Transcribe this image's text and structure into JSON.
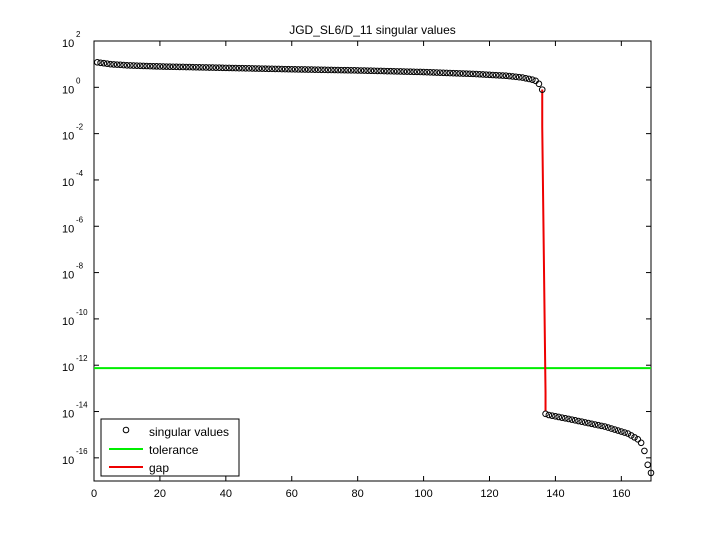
{
  "chart_data": {
    "type": "scatter",
    "title": "JGD_SL6/D_11 singular values",
    "xlabel": "",
    "ylabel": "",
    "xlim": [
      0,
      169
    ],
    "ylim": [
      1e-17,
      100
    ],
    "yscale": "log",
    "grid": false,
    "legend_position": "bottom-left",
    "x_ticks": [
      0,
      20,
      40,
      60,
      80,
      100,
      120,
      140,
      160
    ],
    "y_ticks": [
      {
        "value": 100,
        "base": "10",
        "exp": "2"
      },
      {
        "value": 1,
        "base": "10",
        "exp": "0"
      },
      {
        "value": 0.01,
        "base": "10",
        "exp": "-2"
      },
      {
        "value": 0.0001,
        "base": "10",
        "exp": "-4"
      },
      {
        "value": 1e-06,
        "base": "10",
        "exp": "-6"
      },
      {
        "value": 1e-08,
        "base": "10",
        "exp": "-8"
      },
      {
        "value": 1e-10,
        "base": "10",
        "exp": "-10"
      },
      {
        "value": 1e-12,
        "base": "10",
        "exp": "-12"
      },
      {
        "value": 1e-14,
        "base": "10",
        "exp": "-14"
      },
      {
        "value": 1e-16,
        "base": "10",
        "exp": "-16"
      }
    ],
    "series": [
      {
        "name": "singular values",
        "marker": "circle",
        "color": "#000000",
        "piecewise_log10": [
          [
            1,
            1.08
          ],
          [
            5,
            1.0
          ],
          [
            10,
            0.95
          ],
          [
            20,
            0.9
          ],
          [
            40,
            0.84
          ],
          [
            60,
            0.78
          ],
          [
            80,
            0.73
          ],
          [
            100,
            0.66
          ],
          [
            115,
            0.58
          ],
          [
            125,
            0.5
          ],
          [
            130,
            0.42
          ],
          [
            133,
            0.33
          ],
          [
            134,
            0.28
          ],
          [
            135,
            0.15
          ],
          [
            136,
            -0.1
          ],
          [
            137,
            -14.1
          ],
          [
            138,
            -14.15
          ],
          [
            145,
            -14.35
          ],
          [
            155,
            -14.65
          ],
          [
            162,
            -14.95
          ],
          [
            165,
            -15.2
          ],
          [
            166,
            -15.35
          ],
          [
            167,
            -15.7
          ],
          [
            168,
            -16.3
          ],
          [
            169,
            -16.65
          ]
        ]
      },
      {
        "name": "tolerance",
        "type": "line",
        "color": "#00ee00",
        "value": 7.5e-13
      },
      {
        "name": "gap",
        "type": "line",
        "color": "#ee0000",
        "x": [
          136,
          137
        ],
        "y_upper": 0.8,
        "y_lower": 1e-14
      }
    ]
  }
}
